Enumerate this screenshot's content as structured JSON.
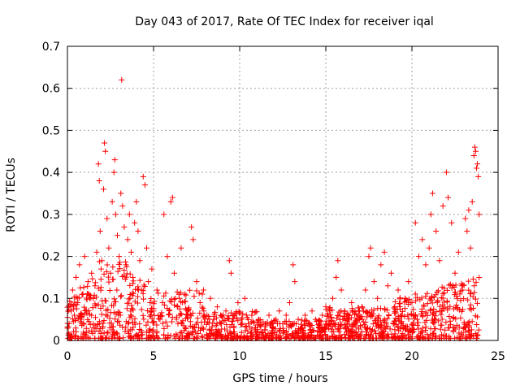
{
  "chart_data": {
    "type": "scatter",
    "title": "Day 043 of 2017, Rate Of TEC Index for receiver iqal",
    "xlabel": "GPS time / hours",
    "ylabel": "ROTI / TECUs",
    "xlim": [
      0,
      25
    ],
    "ylim": [
      0,
      0.7
    ],
    "xticks": [
      "0",
      "5",
      "10",
      "15",
      "20",
      "25"
    ],
    "yticks": [
      "0",
      "0.1",
      "0.2",
      "0.3",
      "0.4",
      "0.5",
      "0.6",
      "0.7"
    ],
    "grid": true,
    "marker": "plus",
    "color": "#ff0000",
    "series": [
      {
        "points": [
          [
            0.1,
            0.04
          ],
          [
            0.2,
            0.08
          ],
          [
            0.3,
            0.12
          ],
          [
            0.4,
            0.06
          ],
          [
            0.5,
            0.15
          ],
          [
            0.6,
            0.09
          ],
          [
            0.7,
            0.18
          ],
          [
            0.8,
            0.05
          ],
          [
            0.9,
            0.11
          ],
          [
            1.0,
            0.2
          ],
          [
            1.1,
            0.07
          ],
          [
            1.2,
            0.14
          ],
          [
            1.3,
            0.1
          ],
          [
            1.4,
            0.16
          ],
          [
            1.5,
            0.03
          ],
          [
            1.6,
            0.13
          ],
          [
            1.7,
            0.21
          ],
          [
            1.8,
            0.42
          ],
          [
            1.85,
            0.38
          ],
          [
            1.9,
            0.26
          ],
          [
            2.0,
            0.19
          ],
          [
            2.1,
            0.36
          ],
          [
            2.15,
            0.47
          ],
          [
            2.2,
            0.45
          ],
          [
            2.3,
            0.29
          ],
          [
            2.4,
            0.22
          ],
          [
            2.5,
            0.16
          ],
          [
            2.6,
            0.33
          ],
          [
            2.7,
            0.4
          ],
          [
            2.75,
            0.43
          ],
          [
            2.8,
            0.3
          ],
          [
            2.9,
            0.25
          ],
          [
            3.0,
            0.2
          ],
          [
            3.1,
            0.35
          ],
          [
            3.15,
            0.62
          ],
          [
            3.2,
            0.32
          ],
          [
            3.3,
            0.27
          ],
          [
            3.4,
            0.18
          ],
          [
            3.5,
            0.24
          ],
          [
            3.6,
            0.3
          ],
          [
            3.7,
            0.21
          ],
          [
            3.8,
            0.15
          ],
          [
            3.9,
            0.28
          ],
          [
            4.0,
            0.33
          ],
          [
            4.1,
            0.26
          ],
          [
            4.2,
            0.19
          ],
          [
            4.3,
            0.12
          ],
          [
            4.4,
            0.39
          ],
          [
            4.5,
            0.37
          ],
          [
            4.6,
            0.22
          ],
          [
            4.7,
            0.14
          ],
          [
            4.8,
            0.09
          ],
          [
            4.9,
            0.17
          ],
          [
            5.0,
            0.07
          ],
          [
            5.2,
            0.12
          ],
          [
            5.4,
            0.06
          ],
          [
            5.6,
            0.3
          ],
          [
            5.8,
            0.2
          ],
          [
            6.0,
            0.33
          ],
          [
            6.1,
            0.34
          ],
          [
            6.2,
            0.16
          ],
          [
            6.4,
            0.08
          ],
          [
            6.6,
            0.22
          ],
          [
            6.8,
            0.11
          ],
          [
            7.0,
            0.07
          ],
          [
            7.2,
            0.27
          ],
          [
            7.3,
            0.24
          ],
          [
            7.5,
            0.14
          ],
          [
            7.7,
            0.09
          ],
          [
            7.9,
            0.12
          ],
          [
            8.1,
            0.06
          ],
          [
            8.3,
            0.1
          ],
          [
            8.5,
            0.05
          ],
          [
            8.7,
            0.08
          ],
          [
            8.9,
            0.04
          ],
          [
            9.2,
            0.07
          ],
          [
            9.4,
            0.19
          ],
          [
            9.5,
            0.16
          ],
          [
            9.7,
            0.06
          ],
          [
            9.9,
            0.09
          ],
          [
            10.1,
            0.05
          ],
          [
            10.3,
            0.1
          ],
          [
            10.5,
            0.04
          ],
          [
            10.7,
            0.06
          ],
          [
            10.9,
            0.03
          ],
          [
            11.1,
            0.05
          ],
          [
            11.3,
            0.02
          ],
          [
            11.5,
            0.04
          ],
          [
            11.7,
            0.06
          ],
          [
            11.9,
            0.03
          ],
          [
            12.1,
            0.05
          ],
          [
            12.3,
            0.07
          ],
          [
            12.5,
            0.04
          ],
          [
            12.7,
            0.06
          ],
          [
            12.9,
            0.09
          ],
          [
            13.1,
            0.18
          ],
          [
            13.2,
            0.14
          ],
          [
            13.4,
            0.05
          ],
          [
            13.6,
            0.03
          ],
          [
            13.8,
            0.06
          ],
          [
            14.0,
            0.04
          ],
          [
            14.2,
            0.07
          ],
          [
            14.4,
            0.05
          ],
          [
            14.6,
            0.03
          ],
          [
            14.8,
            0.06
          ],
          [
            15.0,
            0.08
          ],
          [
            15.2,
            0.04
          ],
          [
            15.4,
            0.1
          ],
          [
            15.6,
            0.15
          ],
          [
            15.7,
            0.19
          ],
          [
            15.9,
            0.12
          ],
          [
            16.1,
            0.07
          ],
          [
            16.3,
            0.05
          ],
          [
            16.5,
            0.09
          ],
          [
            16.7,
            0.04
          ],
          [
            16.9,
            0.06
          ],
          [
            17.1,
            0.08
          ],
          [
            17.3,
            0.12
          ],
          [
            17.5,
            0.2
          ],
          [
            17.6,
            0.22
          ],
          [
            17.8,
            0.14
          ],
          [
            18.0,
            0.1
          ],
          [
            18.2,
            0.18
          ],
          [
            18.4,
            0.21
          ],
          [
            18.6,
            0.13
          ],
          [
            18.8,
            0.16
          ],
          [
            19.0,
            0.08
          ],
          [
            19.2,
            0.12
          ],
          [
            19.4,
            0.06
          ],
          [
            19.6,
            0.1
          ],
          [
            19.8,
            0.14
          ],
          [
            20.0,
            0.09
          ],
          [
            20.2,
            0.28
          ],
          [
            20.4,
            0.2
          ],
          [
            20.6,
            0.24
          ],
          [
            20.8,
            0.18
          ],
          [
            21.0,
            0.22
          ],
          [
            21.1,
            0.3
          ],
          [
            21.2,
            0.35
          ],
          [
            21.4,
            0.26
          ],
          [
            21.6,
            0.19
          ],
          [
            21.8,
            0.32
          ],
          [
            22.0,
            0.4
          ],
          [
            22.1,
            0.34
          ],
          [
            22.3,
            0.28
          ],
          [
            22.5,
            0.16
          ],
          [
            22.7,
            0.21
          ],
          [
            22.9,
            0.13
          ],
          [
            23.1,
            0.29
          ],
          [
            23.2,
            0.26
          ],
          [
            23.3,
            0.31
          ],
          [
            23.4,
            0.22
          ],
          [
            23.5,
            0.33
          ],
          [
            23.6,
            0.44
          ],
          [
            23.7,
            0.45
          ],
          [
            23.8,
            0.42
          ],
          [
            23.85,
            0.39
          ],
          [
            23.9,
            0.3
          ],
          [
            23.65,
            0.46
          ],
          [
            23.75,
            0.41
          ]
        ]
      }
    ]
  }
}
